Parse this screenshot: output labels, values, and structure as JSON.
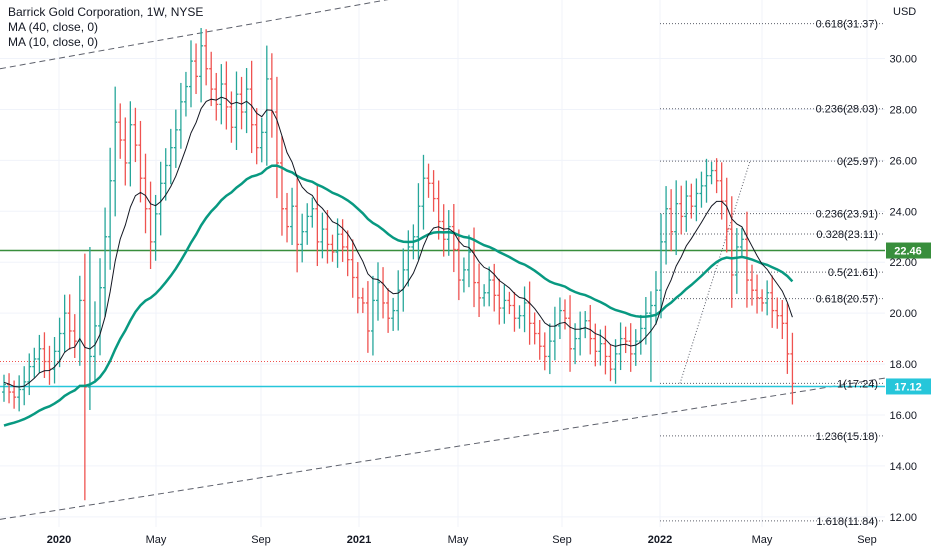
{
  "legend": {
    "title": "Barrick Gold Corporation, 1W, NYSE",
    "ma40": "MA (40, close, 0)",
    "ma10": "MA (10, close, 0)"
  },
  "axis": {
    "currency": "USD"
  },
  "colors": {
    "up": "#26a69a",
    "down": "#ef5350",
    "ma40": "#089981",
    "ma10": "#131722",
    "green_level": "#388e3c",
    "cyan_level": "#26c6da",
    "red_dotted": "#ef5350"
  },
  "badges": [
    {
      "label": "22.46",
      "value": 22.46,
      "color": "#388e3c"
    },
    {
      "label": "17.12",
      "value": 17.12,
      "color": "#26c6da"
    }
  ],
  "chart_data": {
    "type": "candlestick",
    "title": "Barrick Gold Corporation, 1W, NYSE",
    "ylim": [
      11.6,
      32.3
    ],
    "y_scale": "linear",
    "y_ticks": [
      12,
      14,
      16,
      18,
      20,
      22,
      24,
      26,
      28,
      30
    ],
    "x_ticks": [
      "2020",
      "May",
      "Sep",
      "2021",
      "May",
      "Sep",
      "2022",
      "May",
      "Sep"
    ],
    "grid": true,
    "horizontal_levels": [
      {
        "value": 22.46,
        "style": "solid",
        "color": "#388e3c"
      },
      {
        "value": 17.12,
        "style": "solid",
        "color": "#26c6da"
      },
      {
        "value": 18.1,
        "style": "dotted",
        "color": "#ef5350"
      }
    ],
    "fibonacci": [
      {
        "label": "0.618(31.37)",
        "value": 31.37
      },
      {
        "label": "0.236(28.03)",
        "value": 28.03
      },
      {
        "label": "0(25.97)",
        "value": 25.97
      },
      {
        "label": "0.236(23.91)",
        "value": 23.91
      },
      {
        "label": "0.328(23.11)",
        "value": 23.11
      },
      {
        "label": "0.5(21.61)",
        "value": 21.61
      },
      {
        "label": "0.618(20.57)",
        "value": 20.57
      },
      {
        "label": "1(17.24)",
        "value": 17.24
      },
      {
        "label": "1.236(15.18)",
        "value": 15.18
      },
      {
        "label": "1.618(11.84)",
        "value": 11.84
      }
    ],
    "series_close": [
      17.2,
      16.9,
      16.7,
      17.0,
      17.3,
      17.9,
      18.2,
      18.6,
      18.1,
      17.8,
      18.5,
      19.2,
      20.0,
      19.3,
      18.9,
      20.5,
      17.1,
      18.3,
      19.5,
      21.0,
      23.0,
      25.2,
      27.5,
      26.8,
      25.9,
      27.4,
      26.6,
      25.3,
      24.1,
      22.8,
      23.9,
      25.1,
      25.8,
      26.5,
      27.2,
      28.3,
      28.9,
      29.9,
      29.3,
      30.5,
      29.6,
      28.8,
      28.2,
      29.0,
      28.1,
      27.3,
      28.6,
      27.9,
      28.8,
      27.4,
      26.5,
      27.1,
      29.2,
      27.9,
      25.9,
      24.1,
      23.4,
      24.2,
      22.7,
      23.2,
      23.8,
      24.1,
      22.8,
      23.3,
      22.7,
      22.4,
      23.1,
      22.6,
      22.1,
      21.4,
      20.6,
      20.4,
      19.3,
      20.5,
      21.2,
      20.4,
      19.8,
      20.1,
      20.9,
      21.7,
      22.6,
      23.0,
      24.2,
      25.3,
      25.1,
      24.5,
      23.6,
      22.9,
      23.4,
      22.5,
      21.3,
      21.7,
      22.4,
      21.2,
      20.6,
      20.8,
      21.3,
      20.7,
      20.2,
      20.5,
      20.3,
      19.8,
      19.9,
      20.4,
      19.6,
      19.2,
      18.7,
      18.3,
      18.9,
      19.5,
      20.1,
      19.8,
      18.6,
      19.0,
      19.4,
      19.7,
      19.0,
      18.5,
      18.8,
      18.3,
      17.8,
      18.4,
      19.0,
      18.9,
      18.4,
      18.9,
      19.4,
      20.0,
      20.3,
      20.9,
      22.8,
      24.1,
      23.2,
      24.3,
      23.8,
      24.6,
      24.2,
      24.7,
      25.0,
      25.4,
      25.6,
      25.2,
      24.4,
      23.3,
      21.5,
      22.6,
      22.9,
      21.3,
      20.9,
      20.6,
      20.4,
      20.8,
      20.1,
      19.9,
      19.6,
      18.4,
      17.24
    ]
  }
}
